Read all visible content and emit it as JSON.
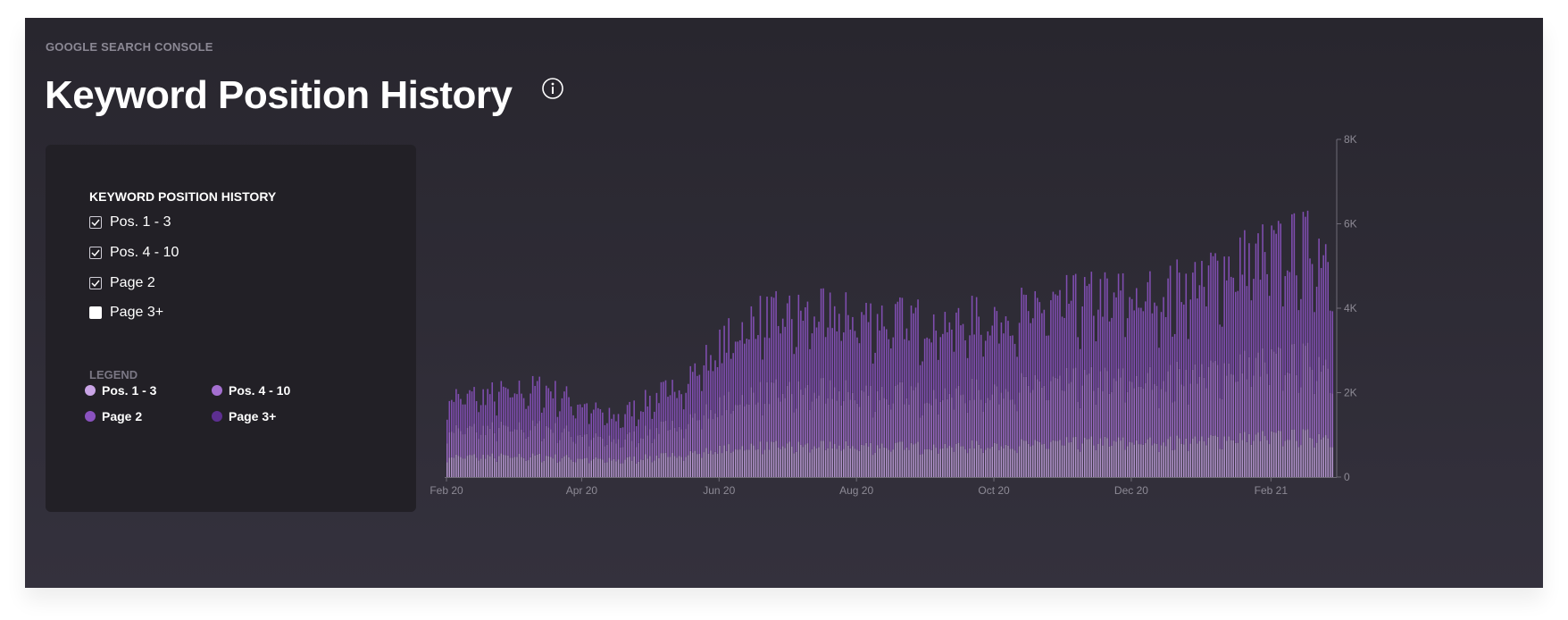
{
  "header": {
    "eyebrow": "GOOGLE SEARCH CONSOLE",
    "title": "Keyword Position History",
    "info_icon": "info-icon"
  },
  "filter_panel": {
    "heading": "KEYWORD POSITION HISTORY",
    "options": [
      {
        "label": "Pos. 1 - 3",
        "checked": true
      },
      {
        "label": "Pos. 4 - 10",
        "checked": true
      },
      {
        "label": "Page 2",
        "checked": true
      },
      {
        "label": "Page 3+",
        "checked": false
      }
    ],
    "legend_heading": "LEGEND",
    "legend": [
      {
        "label": "Pos. 1 - 3",
        "color": "#c9a4e6"
      },
      {
        "label": "Pos. 4 - 10",
        "color": "#a46fd0"
      },
      {
        "label": "Page 2",
        "color": "#8a52bf"
      },
      {
        "label": "Page 3+",
        "color": "#5d2f91"
      }
    ]
  },
  "colors": {
    "card_bg": "#2d2a34",
    "panel_bg": "#222026",
    "axis": "#6e6b76",
    "tick_text": "#8d8a95"
  },
  "chart_data": {
    "type": "bar",
    "stacked": true,
    "x_start": "2020-02-01",
    "x_end": "2021-02-28",
    "x_ticks": [
      "Feb 20",
      "Apr 20",
      "Jun 20",
      "Aug 20",
      "Oct 20",
      "Dec 20",
      "Feb 21"
    ],
    "y_ticks": [
      "0",
      "2K",
      "4K",
      "6K",
      "8K"
    ],
    "ylim": [
      0,
      8000
    ],
    "y_axis_side": "right",
    "grid": false,
    "legend": "left-panel",
    "series": [
      {
        "name": "Pos. 1 - 3",
        "color": "#c9a4e6"
      },
      {
        "name": "Pos. 4 - 10",
        "color": "#a46fd0"
      },
      {
        "name": "Page 2",
        "color": "#8a52bf"
      }
    ],
    "monthly_approx_totals": [
      {
        "month": "2020-02",
        "pos_1_3": 500,
        "pos_4_10": 650,
        "page_2": 800
      },
      {
        "month": "2020-03",
        "pos_1_3": 500,
        "pos_4_10": 700,
        "page_2": 950
      },
      {
        "month": "2020-04",
        "pos_1_3": 400,
        "pos_4_10": 450,
        "page_2": 550
      },
      {
        "month": "2020-05",
        "pos_1_3": 550,
        "pos_4_10": 750,
        "page_2": 950
      },
      {
        "month": "2020-06",
        "pos_1_3": 750,
        "pos_4_10": 1250,
        "page_2": 1800
      },
      {
        "month": "2020-07",
        "pos_1_3": 750,
        "pos_4_10": 1300,
        "page_2": 1850
      },
      {
        "month": "2020-08",
        "pos_1_3": 750,
        "pos_4_10": 1250,
        "page_2": 1800
      },
      {
        "month": "2020-09",
        "pos_1_3": 750,
        "pos_4_10": 1250,
        "page_2": 1700
      },
      {
        "month": "2020-10",
        "pos_1_3": 800,
        "pos_4_10": 1400,
        "page_2": 1800
      },
      {
        "month": "2020-11",
        "pos_1_3": 850,
        "pos_4_10": 1450,
        "page_2": 2000
      },
      {
        "month": "2020-12",
        "pos_1_3": 850,
        "pos_4_10": 1500,
        "page_2": 2050
      },
      {
        "month": "2021-01",
        "pos_1_3": 950,
        "pos_4_10": 1700,
        "page_2": 2500
      },
      {
        "month": "2021-02",
        "pos_1_3": 1000,
        "pos_4_10": 1800,
        "page_2": 2750
      }
    ]
  }
}
